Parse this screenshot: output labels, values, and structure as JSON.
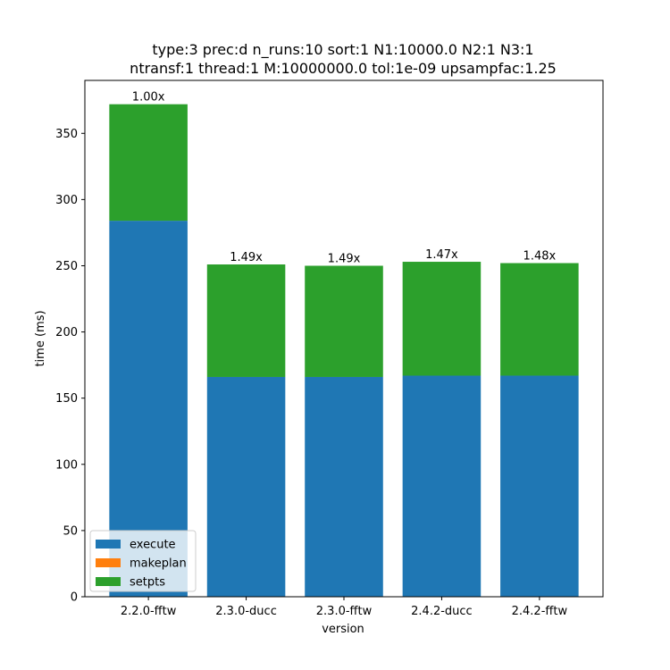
{
  "chart_data": {
    "type": "bar",
    "stacked": true,
    "title_line1": "type:3 prec:d n_runs:10 sort:1 N1:10000.0 N2:1 N3:1",
    "title_line2": "ntransf:1 thread:1 M:10000000.0 tol:1e-09 upsampfac:1.25",
    "xlabel": "version",
    "ylabel": "time (ms)",
    "ylim": [
      0,
      390
    ],
    "yticks": [
      0,
      50,
      100,
      150,
      200,
      250,
      300,
      350
    ],
    "categories": [
      "2.2.0-fftw",
      "2.3.0-ducc",
      "2.3.0-fftw",
      "2.4.2-ducc",
      "2.4.2-fftw"
    ],
    "series": [
      {
        "name": "execute",
        "color": "#1f77b4",
        "values": [
          284,
          166,
          166,
          167,
          167
        ]
      },
      {
        "name": "makeplan",
        "color": "#ff7f0e",
        "values": [
          0,
          0,
          0,
          0,
          0
        ]
      },
      {
        "name": "setpts",
        "color": "#2ca02c",
        "values": [
          88,
          85,
          84,
          86,
          85
        ]
      }
    ],
    "bar_labels": [
      "1.00x",
      "1.49x",
      "1.49x",
      "1.47x",
      "1.48x"
    ],
    "legend_position": "lower-left",
    "grid": false
  }
}
